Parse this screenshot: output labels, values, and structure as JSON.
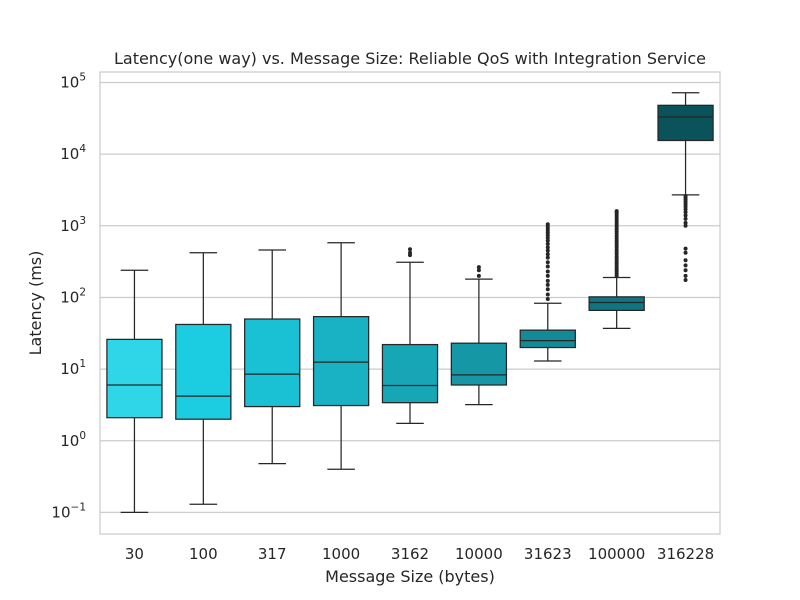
{
  "chart_data": {
    "type": "box",
    "title": "Latency(one way) vs. Message Size: Reliable QoS with Integration Service",
    "xlabel": "Message Size (bytes)",
    "ylabel": "Latency (ms)",
    "yscale": "log",
    "ylim": [
      0.05,
      140000
    ],
    "yticks": [
      {
        "value": 0.1,
        "base": "10",
        "exp": "−1"
      },
      {
        "value": 1,
        "base": "10",
        "exp": "0"
      },
      {
        "value": 10,
        "base": "10",
        "exp": "1"
      },
      {
        "value": 100,
        "base": "10",
        "exp": "2"
      },
      {
        "value": 1000,
        "base": "10",
        "exp": "3"
      },
      {
        "value": 10000,
        "base": "10",
        "exp": "4"
      },
      {
        "value": 100000,
        "base": "10",
        "exp": "5"
      }
    ],
    "grid": true,
    "categories": [
      "30",
      "100",
      "317",
      "1000",
      "3162",
      "10000",
      "31623",
      "100000",
      "316228"
    ],
    "boxes": [
      {
        "min": 0.1,
        "q1": 2.1,
        "median": 6.0,
        "q3": 26,
        "max": 240,
        "outliers": [],
        "color": "#2fd6e8"
      },
      {
        "min": 0.13,
        "q1": 2.0,
        "median": 4.2,
        "q3": 42,
        "max": 420,
        "outliers": [],
        "color": "#1ccde2"
      },
      {
        "min": 0.48,
        "q1": 3.0,
        "median": 8.5,
        "q3": 50,
        "max": 460,
        "outliers": [],
        "color": "#1ac0d3"
      },
      {
        "min": 0.4,
        "q1": 3.1,
        "median": 12.5,
        "q3": 54,
        "max": 580,
        "outliers": [],
        "color": "#18b2c4"
      },
      {
        "min": 1.75,
        "q1": 3.4,
        "median": 5.9,
        "q3": 22,
        "max": 310,
        "outliers": [
          390,
          420,
          470
        ],
        "color": "#17a6b6"
      },
      {
        "min": 3.2,
        "q1": 6.0,
        "median": 8.3,
        "q3": 23,
        "max": 180,
        "outliers": [
          200,
          240,
          265
        ],
        "color": "#1597a6"
      },
      {
        "min": 13,
        "q1": 20,
        "median": 25,
        "q3": 35,
        "max": 83,
        "outliers": [
          95,
          110,
          130,
          150,
          170,
          200,
          230,
          270,
          310,
          360,
          400,
          450,
          500,
          560,
          620,
          680,
          740,
          800,
          860,
          920,
          980,
          1050
        ],
        "color": "#138a97"
      },
      {
        "min": 37,
        "q1": 66,
        "median": 85,
        "q3": 102,
        "max": 190,
        "outliers": [
          200,
          215,
          230,
          245,
          260,
          280,
          300,
          320,
          345,
          370,
          400,
          430,
          460,
          500,
          540,
          580,
          620,
          670,
          720,
          780,
          840,
          900,
          970,
          1050,
          1130,
          1220,
          1320,
          1420,
          1520,
          1600
        ],
        "color": "#0f7580"
      },
      {
        "min": 2700,
        "q1": 15500,
        "median": 33000,
        "q3": 48000,
        "max": 72000,
        "outliers": [
          175,
          200,
          240,
          280,
          330,
          420,
          480,
          1000,
          1100,
          1250,
          1400,
          1550,
          1700,
          1850,
          2000,
          2150,
          2300,
          2450,
          2600
        ],
        "color": "#0b535b"
      }
    ]
  }
}
